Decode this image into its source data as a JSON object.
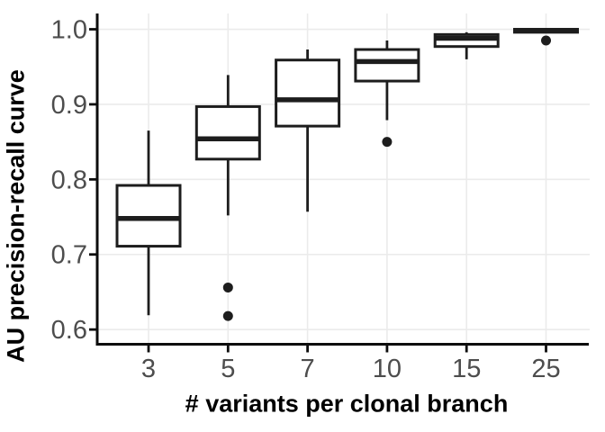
{
  "chart_data": {
    "type": "boxplot",
    "title": "",
    "xlabel": "# variants per clonal branch",
    "ylabel": "AU precision-recall curve",
    "categories": [
      "3",
      "5",
      "7",
      "10",
      "15",
      "25"
    ],
    "y_ticks": [
      0.6,
      0.7,
      0.8,
      0.9,
      1.0
    ],
    "ylim": [
      0.581,
      1.021
    ],
    "grid": true,
    "legend": "none",
    "boxes": [
      {
        "category": "3",
        "whisker_low": 0.619,
        "q1": 0.711,
        "median": 0.748,
        "q3": 0.792,
        "whisker_high": 0.865,
        "outliers": []
      },
      {
        "category": "5",
        "whisker_low": 0.752,
        "q1": 0.827,
        "median": 0.854,
        "q3": 0.897,
        "whisker_high": 0.939,
        "outliers": [
          0.656,
          0.618
        ]
      },
      {
        "category": "7",
        "whisker_low": 0.757,
        "q1": 0.871,
        "median": 0.906,
        "q3": 0.959,
        "whisker_high": 0.973,
        "outliers": []
      },
      {
        "category": "10",
        "whisker_low": 0.879,
        "q1": 0.931,
        "median": 0.957,
        "q3": 0.973,
        "whisker_high": 0.985,
        "outliers": [
          0.85
        ]
      },
      {
        "category": "15",
        "whisker_low": 0.96,
        "q1": 0.977,
        "median": 0.988,
        "q3": 0.993,
        "whisker_high": 0.996,
        "outliers": []
      },
      {
        "category": "25",
        "whisker_low": 0.995,
        "q1": 0.996,
        "median": 0.998,
        "q3": 1.0,
        "whisker_high": 1.0,
        "outliers": [
          0.985
        ]
      }
    ]
  },
  "colors": {
    "background": "#ffffff",
    "box_stroke": "#1d1d1d",
    "box_fill": "#ffffff",
    "grid": "#ebebeb",
    "axis": "#0d0d0d",
    "tick_label": "#4d4d4d",
    "title": "#000000"
  }
}
